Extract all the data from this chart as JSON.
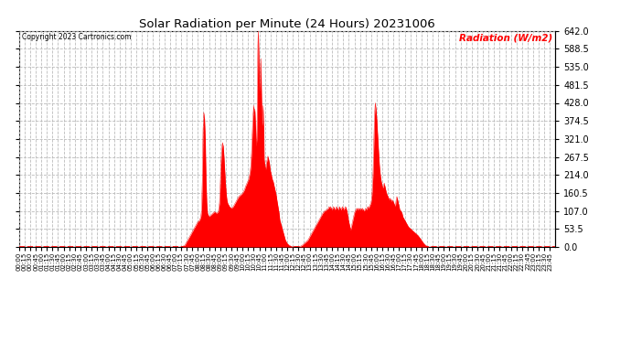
{
  "title": "Solar Radiation per Minute (24 Hours) 20231006",
  "copyright_text": "Copyright 2023 Cartronics.com",
  "ylabel": "Radiation (W/m2)",
  "ylabel_color": "#ff0000",
  "copyright_color": "#000000",
  "title_color": "#000000",
  "fill_color": "#ff0000",
  "line_color": "#ff0000",
  "background_color": "#ffffff",
  "grid_color": "#bbbbbb",
  "ylim": [
    0.0,
    642.0
  ],
  "yticks": [
    0.0,
    53.5,
    107.0,
    160.5,
    214.0,
    267.5,
    321.0,
    374.5,
    428.0,
    481.5,
    535.0,
    588.5,
    642.0
  ],
  "total_minutes": 1440,
  "x_tick_interval": 15
}
